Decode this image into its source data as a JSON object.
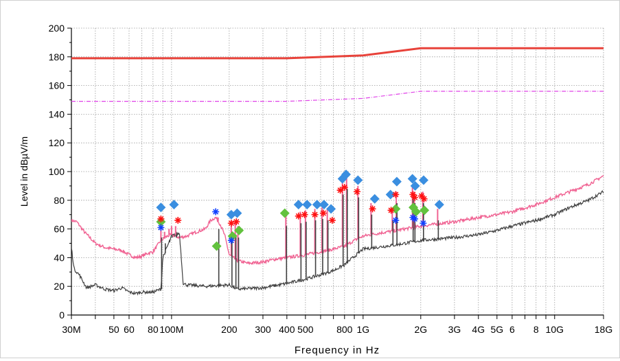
{
  "chart_data": {
    "type": "line",
    "title": "",
    "xlabel": "Frequency in Hz",
    "ylabel": "Level in dBµV/m",
    "xscale": "log",
    "xlim": [
      30000000,
      18000000000
    ],
    "ylim": [
      0,
      200
    ],
    "grid": true,
    "colors": {
      "limit": "#e8423a",
      "limit2": "#e040e8",
      "peak": "#f06292",
      "avg": "#404040",
      "diamond_blue": "#3a8ee0",
      "diamond_green": "#62c23e",
      "star_red": "#ff1010",
      "star_blue": "#1040ff"
    },
    "y_ticks": [
      {
        "value": 0,
        "label": "0"
      },
      {
        "value": 20,
        "label": "20"
      },
      {
        "value": 40,
        "label": "40"
      },
      {
        "value": 60,
        "label": "60"
      },
      {
        "value": 80,
        "label": "80"
      },
      {
        "value": 100,
        "label": "100"
      },
      {
        "value": 120,
        "label": "120"
      },
      {
        "value": 140,
        "label": "140"
      },
      {
        "value": 160,
        "label": "160"
      },
      {
        "value": 180,
        "label": "180"
      },
      {
        "value": 200,
        "label": "200"
      }
    ],
    "x_ticks": [
      {
        "value": 30000000,
        "label": "30M"
      },
      {
        "value": 50000000,
        "label": "50"
      },
      {
        "value": 60000000,
        "label": "60"
      },
      {
        "value": 80000000,
        "label": "80"
      },
      {
        "value": 100000000,
        "label": "100M"
      },
      {
        "value": 200000000,
        "label": "200"
      },
      {
        "value": 300000000,
        "label": "300"
      },
      {
        "value": 400000000,
        "label": "400"
      },
      {
        "value": 500000000,
        "label": "500"
      },
      {
        "value": 800000000,
        "label": "800"
      },
      {
        "value": 1000000000,
        "label": "1G"
      },
      {
        "value": 2000000000,
        "label": "2G"
      },
      {
        "value": 3000000000,
        "label": "3G"
      },
      {
        "value": 4000000000,
        "label": "4G"
      },
      {
        "value": 5000000000,
        "label": "5G"
      },
      {
        "value": 6000000000,
        "label": "6"
      },
      {
        "value": 8000000000,
        "label": "8"
      },
      {
        "value": 10000000000,
        "label": "10G"
      },
      {
        "value": 18000000000,
        "label": "18G"
      }
    ],
    "x_gridlines": [
      30000000,
      40000000,
      50000000,
      60000000,
      70000000,
      80000000,
      90000000,
      100000000,
      200000000,
      300000000,
      400000000,
      500000000,
      600000000,
      700000000,
      800000000,
      900000000,
      1000000000,
      2000000000,
      3000000000,
      4000000000,
      5000000000,
      6000000000,
      7000000000,
      8000000000,
      9000000000,
      10000000000,
      18000000000
    ],
    "series": [
      {
        "role": "limit",
        "style": "solid-thick",
        "x": [
          30000000,
          400000000,
          1000000000,
          2000000000,
          18000000000
        ],
        "y": [
          179,
          179,
          181,
          186,
          186
        ]
      },
      {
        "role": "limit2",
        "style": "dashdot",
        "x": [
          30000000,
          400000000,
          1000000000,
          2000000000,
          18000000000
        ],
        "y": [
          149,
          149,
          151,
          156,
          156
        ]
      },
      {
        "role": "peak",
        "style": "noisy",
        "x": [
          30000000,
          32000000,
          35000000,
          40000000,
          45000000,
          50000000,
          55000000,
          60000000,
          65000000,
          70000000,
          75000000,
          80000000,
          88000000,
          95000000,
          100000000,
          110000000,
          120000000,
          135000000,
          150000000,
          160000000,
          170000000,
          180000000,
          190000000,
          200000000,
          220000000,
          250000000,
          300000000,
          350000000,
          400000000,
          500000000,
          600000000,
          700000000,
          800000000,
          900000000,
          1000000000,
          1200000000,
          1500000000,
          2000000000,
          3000000000,
          4000000000,
          5000000000,
          6000000000,
          8000000000,
          10000000000,
          12000000000,
          15000000000,
          18000000000
        ],
        "y": [
          66,
          65,
          58,
          50,
          47,
          46,
          45,
          42,
          40,
          41,
          43,
          44,
          52,
          55,
          56,
          54,
          55,
          58,
          60,
          66,
          68,
          63,
          55,
          42,
          38,
          36,
          37,
          39,
          40,
          42,
          44,
          46,
          48,
          52,
          55,
          57,
          59,
          62,
          65,
          68,
          70,
          72,
          77,
          82,
          86,
          91,
          97
        ]
      },
      {
        "role": "avg",
        "style": "noisy",
        "x": [
          30000000,
          31000000,
          33000000,
          36000000,
          40000000,
          45000000,
          50000000,
          55000000,
          60000000,
          65000000,
          70000000,
          80000000,
          88000000,
          90000000,
          100000000,
          110000000,
          115000000,
          120000000,
          150000000,
          200000000,
          220000000,
          300000000,
          400000000,
          500000000,
          600000000,
          700000000,
          800000000,
          1000000000,
          1500000000,
          2000000000,
          3000000000,
          4000000000,
          5000000000,
          6000000000,
          8000000000,
          10000000000,
          12000000000,
          15000000000,
          18000000000
        ],
        "y": [
          47,
          32,
          28,
          19,
          21,
          18,
          17,
          19,
          16,
          15,
          16,
          16,
          18,
          40,
          55,
          57,
          22,
          21,
          20,
          21,
          18,
          19,
          22,
          25,
          28,
          31,
          35,
          46,
          49,
          52,
          54,
          56,
          59,
          62,
          66,
          70,
          75,
          80,
          86
        ]
      }
    ],
    "spikes": [
      {
        "x": 88000000,
        "top": 62
      },
      {
        "x": 92000000,
        "top": 58
      },
      {
        "x": 97000000,
        "top": 60
      },
      {
        "x": 100000000,
        "top": 62
      },
      {
        "x": 105000000,
        "top": 62
      },
      {
        "x": 175000000,
        "top": 68
      },
      {
        "x": 205000000,
        "top": 66
      },
      {
        "x": 215000000,
        "top": 64
      },
      {
        "x": 222000000,
        "top": 62
      },
      {
        "x": 395000000,
        "top": 70
      },
      {
        "x": 470000000,
        "top": 72
      },
      {
        "x": 500000000,
        "top": 73
      },
      {
        "x": 560000000,
        "top": 74
      },
      {
        "x": 610000000,
        "top": 75
      },
      {
        "x": 650000000,
        "top": 74
      },
      {
        "x": 780000000,
        "top": 92
      },
      {
        "x": 820000000,
        "top": 96
      },
      {
        "x": 940000000,
        "top": 90
      },
      {
        "x": 1100000000,
        "top": 78
      },
      {
        "x": 1420000000,
        "top": 74
      },
      {
        "x": 1490000000,
        "top": 86
      },
      {
        "x": 1810000000,
        "top": 90
      },
      {
        "x": 1850000000,
        "top": 86
      },
      {
        "x": 2050000000,
        "top": 86
      },
      {
        "x": 2450000000,
        "top": 74
      }
    ],
    "markers": {
      "diamond_blue": [
        {
          "x": 88000000,
          "y": 75
        },
        {
          "x": 103000000,
          "y": 77
        },
        {
          "x": 205000000,
          "y": 70
        },
        {
          "x": 220000000,
          "y": 71
        },
        {
          "x": 460000000,
          "y": 77
        },
        {
          "x": 510000000,
          "y": 77
        },
        {
          "x": 575000000,
          "y": 77
        },
        {
          "x": 625000000,
          "y": 77
        },
        {
          "x": 680000000,
          "y": 74
        },
        {
          "x": 780000000,
          "y": 95
        },
        {
          "x": 815000000,
          "y": 98
        },
        {
          "x": 940000000,
          "y": 94
        },
        {
          "x": 1150000000,
          "y": 81
        },
        {
          "x": 1390000000,
          "y": 84
        },
        {
          "x": 1500000000,
          "y": 93
        },
        {
          "x": 1810000000,
          "y": 95
        },
        {
          "x": 1870000000,
          "y": 90
        },
        {
          "x": 2070000000,
          "y": 94
        },
        {
          "x": 2500000000,
          "y": 77
        }
      ],
      "diamond_green": [
        {
          "x": 88000000,
          "y": 65
        },
        {
          "x": 172000000,
          "y": 48
        },
        {
          "x": 208000000,
          "y": 55
        },
        {
          "x": 225000000,
          "y": 59
        },
        {
          "x": 390000000,
          "y": 71
        },
        {
          "x": 1480000000,
          "y": 74
        },
        {
          "x": 1830000000,
          "y": 75
        },
        {
          "x": 1890000000,
          "y": 72
        },
        {
          "x": 2090000000,
          "y": 73
        }
      ],
      "star_red": [
        {
          "x": 88000000,
          "y": 67
        },
        {
          "x": 108000000,
          "y": 66
        },
        {
          "x": 205000000,
          "y": 64
        },
        {
          "x": 218000000,
          "y": 65
        },
        {
          "x": 460000000,
          "y": 69
        },
        {
          "x": 495000000,
          "y": 70
        },
        {
          "x": 560000000,
          "y": 70
        },
        {
          "x": 620000000,
          "y": 71
        },
        {
          "x": 690000000,
          "y": 66
        },
        {
          "x": 760000000,
          "y": 87
        },
        {
          "x": 800000000,
          "y": 89
        },
        {
          "x": 930000000,
          "y": 86
        },
        {
          "x": 1120000000,
          "y": 74
        },
        {
          "x": 1400000000,
          "y": 73
        },
        {
          "x": 1480000000,
          "y": 84
        },
        {
          "x": 1820000000,
          "y": 84
        },
        {
          "x": 1860000000,
          "y": 82
        },
        {
          "x": 2020000000,
          "y": 83
        },
        {
          "x": 2080000000,
          "y": 81
        }
      ],
      "star_blue": [
        {
          "x": 88000000,
          "y": 61
        },
        {
          "x": 170000000,
          "y": 72
        },
        {
          "x": 205000000,
          "y": 52
        },
        {
          "x": 1480000000,
          "y": 66
        },
        {
          "x": 1820000000,
          "y": 68
        },
        {
          "x": 1860000000,
          "y": 67
        },
        {
          "x": 2060000000,
          "y": 64
        }
      ]
    }
  }
}
